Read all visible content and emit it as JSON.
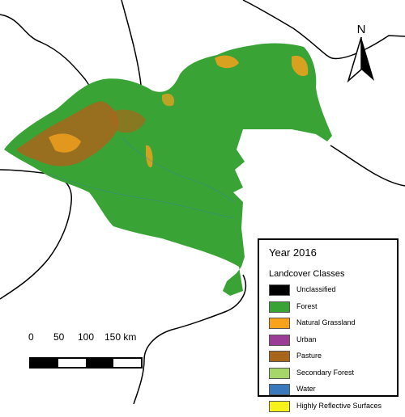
{
  "map": {
    "year_title": "Year 2016",
    "region_name": "",
    "colors": {
      "background": "#ffffff",
      "forest": "#3aa335",
      "grassland": "#f5a21c",
      "pasture": "#a8661b",
      "border": "#000000"
    }
  },
  "legend": {
    "title": "Year 2016",
    "subtitle": "Landcover Classes",
    "classes": [
      {
        "label": "Unclassified",
        "color": "#000000"
      },
      {
        "label": "Forest",
        "color": "#3aa335"
      },
      {
        "label": "Natural Grassland",
        "color": "#f7a21b"
      },
      {
        "label": "Urban",
        "color": "#9c3d95"
      },
      {
        "label": "Pasture",
        "color": "#a8661b"
      },
      {
        "label": "Secondary Forest",
        "color": "#a6d66a"
      },
      {
        "label": "Water",
        "color": "#3a78bd"
      },
      {
        "label": "Highly Reflective Surfaces",
        "color": "#f7f21b"
      }
    ]
  },
  "scale_bar": {
    "labels": [
      "0",
      "50",
      "100",
      "150 km"
    ],
    "segment_colors": [
      "#000000",
      "#ffffff",
      "#000000",
      "#ffffff"
    ]
  },
  "north_arrow": {
    "letter": "N"
  }
}
